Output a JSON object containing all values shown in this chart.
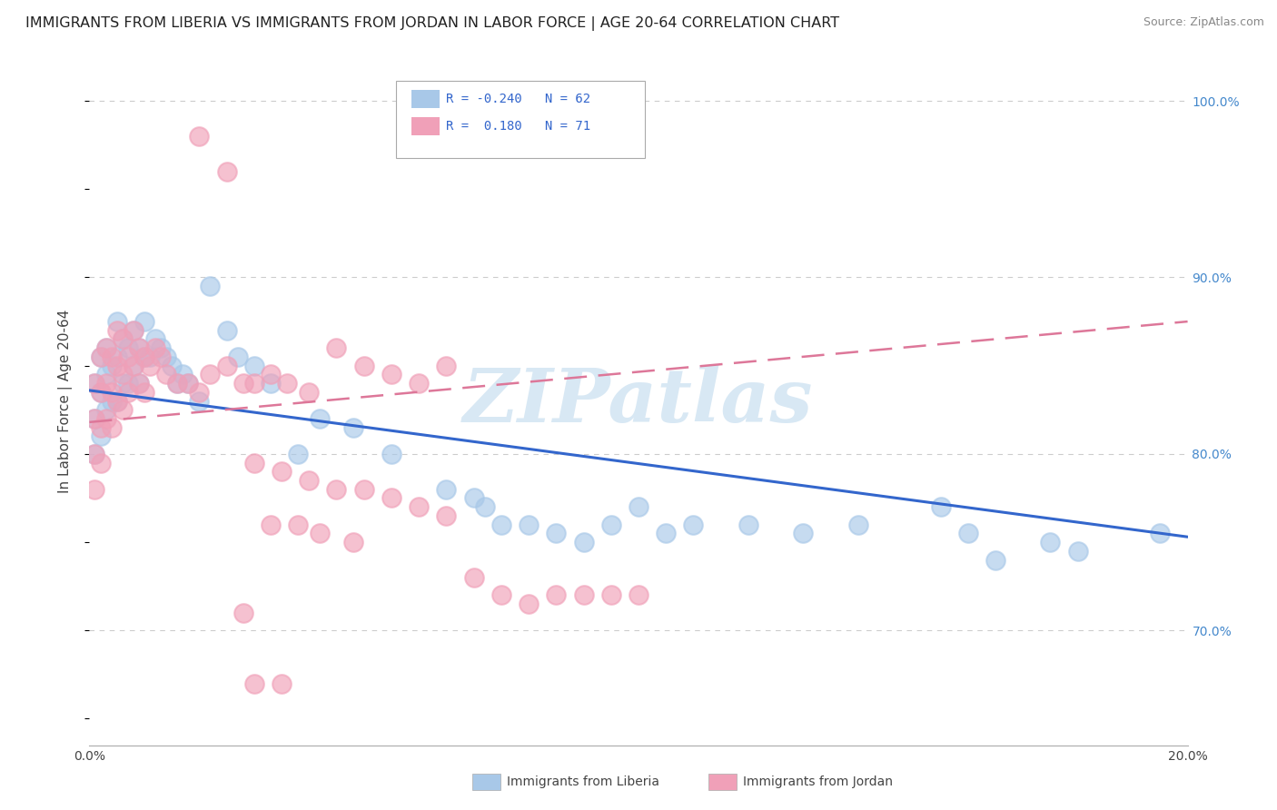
{
  "title": "IMMIGRANTS FROM LIBERIA VS IMMIGRANTS FROM JORDAN IN LABOR FORCE | AGE 20-64 CORRELATION CHART",
  "source": "Source: ZipAtlas.com",
  "ylabel": "In Labor Force | Age 20-64",
  "xlim": [
    0.0,
    0.2
  ],
  "ylim": [
    0.635,
    1.025
  ],
  "xtick_positions": [
    0.0,
    0.04,
    0.08,
    0.12,
    0.16,
    0.2
  ],
  "xticklabels": [
    "0.0%",
    "",
    "",
    "",
    "",
    "20.0%"
  ],
  "ytick_right_positions": [
    0.7,
    0.8,
    0.9,
    1.0
  ],
  "ytick_right_labels": [
    "70.0%",
    "80.0%",
    "90.0%",
    "100.0%"
  ],
  "liberia_color": "#a8c8e8",
  "jordan_color": "#f0a0b8",
  "liberia_line_color": "#3366cc",
  "jordan_line_color": "#dd7799",
  "legend_text_color": "#3366cc",
  "background_color": "#ffffff",
  "grid_color": "#cccccc",
  "watermark": "ZIPatlas",
  "watermark_color": "#d8e8f4",
  "title_fontsize": 11.5,
  "ylabel_fontsize": 11,
  "tick_fontsize": 10,
  "source_fontsize": 9,
  "lib_line_x0": 0.0,
  "lib_line_y0": 0.836,
  "lib_line_x1": 0.2,
  "lib_line_y1": 0.753,
  "jor_line_x0": 0.0,
  "jor_line_y0": 0.818,
  "jor_line_x1": 0.2,
  "jor_line_y1": 0.875,
  "liberia_x": [
    0.001,
    0.001,
    0.001,
    0.002,
    0.002,
    0.002,
    0.003,
    0.003,
    0.003,
    0.004,
    0.004,
    0.005,
    0.005,
    0.005,
    0.006,
    0.006,
    0.007,
    0.007,
    0.008,
    0.008,
    0.009,
    0.009,
    0.01,
    0.01,
    0.011,
    0.012,
    0.013,
    0.014,
    0.015,
    0.016,
    0.017,
    0.018,
    0.02,
    0.022,
    0.025,
    0.027,
    0.03,
    0.033,
    0.038,
    0.042,
    0.048,
    0.055,
    0.065,
    0.07,
    0.072,
    0.075,
    0.08,
    0.085,
    0.09,
    0.095,
    0.1,
    0.105,
    0.11,
    0.12,
    0.13,
    0.14,
    0.155,
    0.16,
    0.165,
    0.175,
    0.18,
    0.195
  ],
  "liberia_y": [
    0.84,
    0.82,
    0.8,
    0.855,
    0.835,
    0.81,
    0.86,
    0.845,
    0.825,
    0.85,
    0.83,
    0.875,
    0.855,
    0.83,
    0.865,
    0.84,
    0.86,
    0.84,
    0.87,
    0.85,
    0.86,
    0.84,
    0.875,
    0.855,
    0.855,
    0.865,
    0.86,
    0.855,
    0.85,
    0.84,
    0.845,
    0.84,
    0.83,
    0.895,
    0.87,
    0.855,
    0.85,
    0.84,
    0.8,
    0.82,
    0.815,
    0.8,
    0.78,
    0.775,
    0.77,
    0.76,
    0.76,
    0.755,
    0.75,
    0.76,
    0.77,
    0.755,
    0.76,
    0.76,
    0.755,
    0.76,
    0.77,
    0.755,
    0.74,
    0.75,
    0.745,
    0.755
  ],
  "jordan_x": [
    0.001,
    0.001,
    0.001,
    0.001,
    0.002,
    0.002,
    0.002,
    0.002,
    0.003,
    0.003,
    0.003,
    0.004,
    0.004,
    0.004,
    0.005,
    0.005,
    0.005,
    0.006,
    0.006,
    0.006,
    0.007,
    0.007,
    0.008,
    0.008,
    0.009,
    0.009,
    0.01,
    0.01,
    0.011,
    0.012,
    0.013,
    0.014,
    0.016,
    0.018,
    0.02,
    0.022,
    0.025,
    0.028,
    0.03,
    0.033,
    0.036,
    0.04,
    0.045,
    0.05,
    0.055,
    0.06,
    0.065,
    0.033,
    0.038,
    0.042,
    0.048,
    0.03,
    0.035,
    0.04,
    0.045,
    0.05,
    0.055,
    0.06,
    0.065,
    0.07,
    0.075,
    0.08,
    0.085,
    0.09,
    0.095,
    0.1,
    0.02,
    0.025,
    0.028,
    0.03,
    0.035
  ],
  "jordan_y": [
    0.84,
    0.82,
    0.8,
    0.78,
    0.855,
    0.835,
    0.815,
    0.795,
    0.86,
    0.84,
    0.82,
    0.855,
    0.835,
    0.815,
    0.87,
    0.85,
    0.83,
    0.865,
    0.845,
    0.825,
    0.855,
    0.835,
    0.87,
    0.85,
    0.86,
    0.84,
    0.855,
    0.835,
    0.85,
    0.86,
    0.855,
    0.845,
    0.84,
    0.84,
    0.835,
    0.845,
    0.85,
    0.84,
    0.84,
    0.845,
    0.84,
    0.835,
    0.86,
    0.85,
    0.845,
    0.84,
    0.85,
    0.76,
    0.76,
    0.755,
    0.75,
    0.795,
    0.79,
    0.785,
    0.78,
    0.78,
    0.775,
    0.77,
    0.765,
    0.73,
    0.72,
    0.715,
    0.72,
    0.72,
    0.72,
    0.72,
    0.98,
    0.96,
    0.71,
    0.67,
    0.67
  ]
}
